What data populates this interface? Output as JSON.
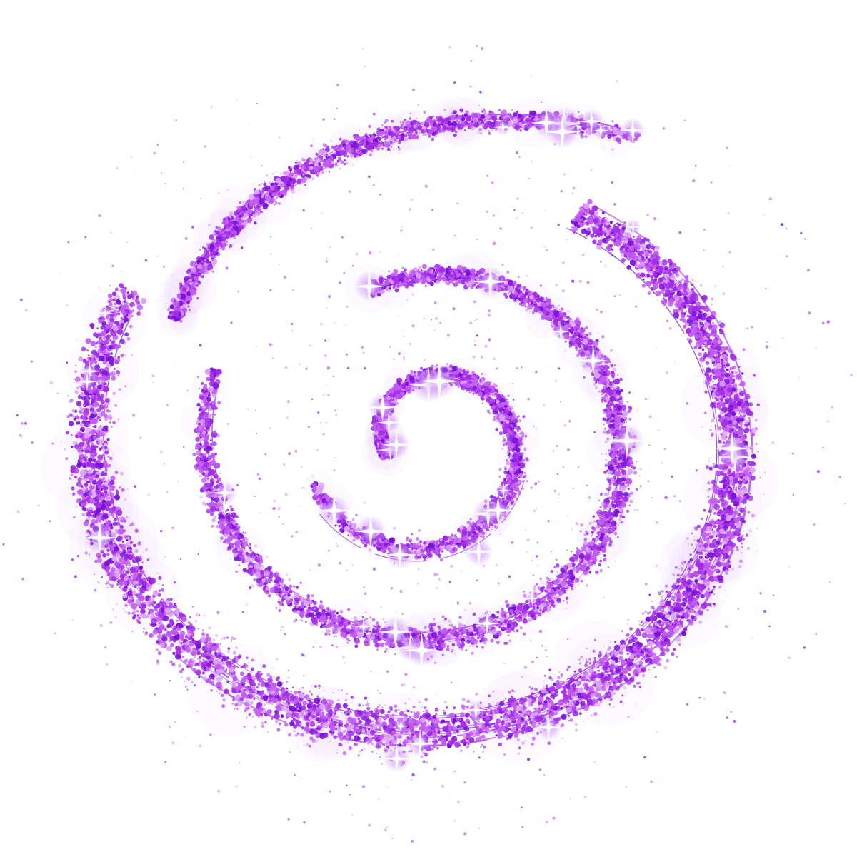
{
  "artwork": {
    "subject": "purple-glitter-spiral-galaxy",
    "background_color": "#ffffff",
    "palette": {
      "deep": "#7b12d6",
      "mid": "#a22ee6",
      "light": "#c35cf2",
      "pale": "#dca2fa",
      "glow": "#c78cf5",
      "sparkle": "#ffffff"
    },
    "arm_count": 3,
    "sparkle_count": 44,
    "seed": 1337
  }
}
